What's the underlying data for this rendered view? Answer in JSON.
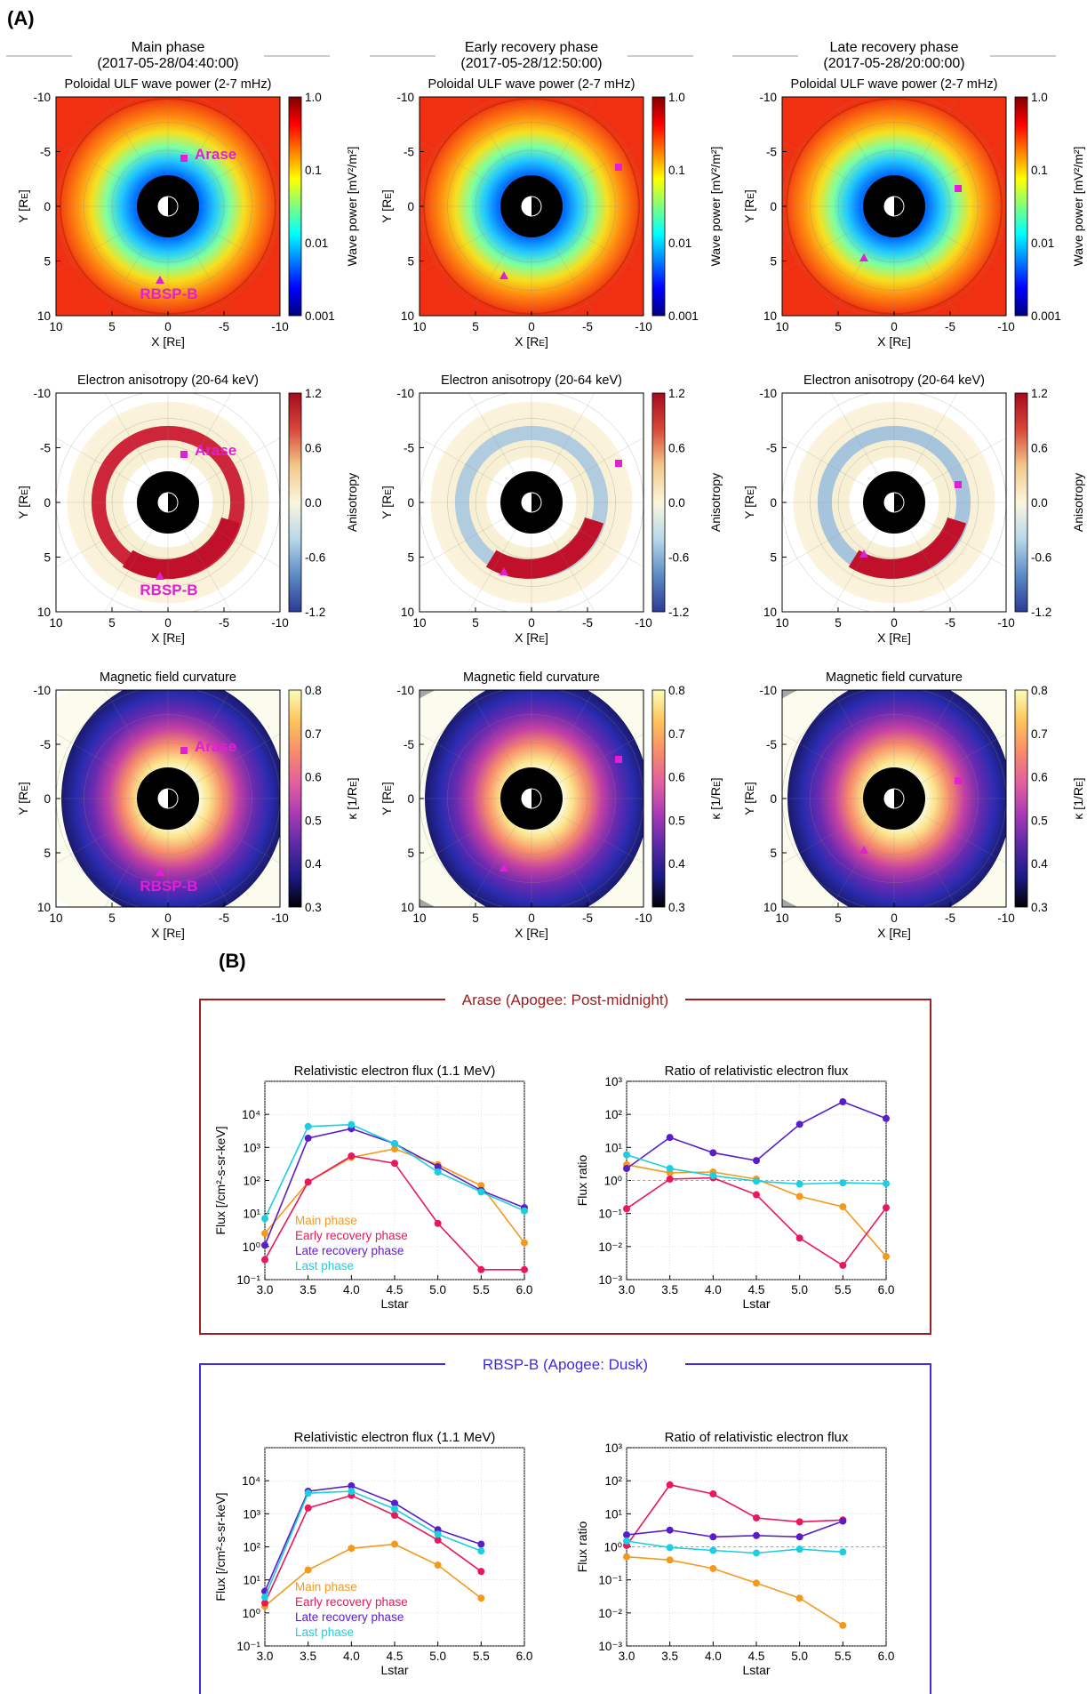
{
  "figure": {
    "label_a": "(A)",
    "label_b": "(B)",
    "phases": [
      {
        "name": "Main phase",
        "time": "(2017-05-28/04:40:00)"
      },
      {
        "name": "Early recovery phase",
        "time": "(2017-05-28/12:50:00)"
      },
      {
        "name": "Late recovery phase",
        "time": "(2017-05-28/20:00:00)"
      }
    ],
    "map_rows": [
      {
        "title": "Poloidal ULF wave power (2-7 mHz)",
        "colorbar_label": "Wave power [mV²/m²]",
        "colorbar_ticks": [
          "1.0",
          "0.1",
          "0.01",
          "0.001"
        ],
        "colormap": "jet",
        "colors": [
          "#00007f",
          "#0000ff",
          "#007fff",
          "#00ffff",
          "#7fff7f",
          "#ffff00",
          "#ff7f00",
          "#ff0000",
          "#7f0000"
        ]
      },
      {
        "title": "Electron anisotropy (20-64 keV)",
        "colorbar_label": "Anisotropy",
        "colorbar_ticks": [
          "1.2",
          "0.6",
          "0.0",
          "-0.6",
          "-1.2"
        ],
        "colormap": "diverging",
        "colors": [
          "#2c3a96",
          "#5b8bc4",
          "#b9d8ea",
          "#fbf6dc",
          "#f4c98a",
          "#d9483a",
          "#a50b1e"
        ]
      },
      {
        "title": "Magnetic field curvature",
        "colorbar_label": "κ [1/R_E]",
        "colorbar_ticks": [
          "0.8",
          "0.7",
          "0.6",
          "0.5",
          "0.4",
          "0.3"
        ],
        "colormap": "plasma",
        "colors": [
          "#000004",
          "#1c1a87",
          "#5b2aa6",
          "#a93ab5",
          "#e35fa0",
          "#f88b6b",
          "#fcc45a",
          "#fbfdb9"
        ]
      }
    ],
    "map_axes": {
      "x_label": "X [R_E]",
      "y_label": "Y [R_E]",
      "x_ticks": [
        "10",
        "5",
        "0",
        "-5",
        "-10"
      ],
      "y_ticks": [
        "-10",
        "-5",
        "0",
        "5",
        "10"
      ]
    },
    "satellites": {
      "arase": "Arase",
      "rbsp": "RBSP-B",
      "marker_color": "#e21fd5"
    },
    "legend": [
      "Main phase",
      "Early recovery phase",
      "Late recovery phase",
      "Last phase"
    ],
    "series_colors": {
      "Main phase": "#f39a1c",
      "Early recovery phase": "#e8185a",
      "Late recovery phase": "#5a1ec8",
      "Last phase": "#1ccfe0"
    },
    "boxes": [
      {
        "title": "Arase (Apogee: Post-midnight)",
        "border_color": "#a01e1e",
        "title_color": "#a01e1e"
      },
      {
        "title": "RBSP-B (Apogee: Dusk)",
        "border_color": "#3f2be0",
        "title_color": "#3f2be0"
      }
    ]
  },
  "chart_data": [
    {
      "type": "line",
      "panel": "Arase",
      "title": "Relativistic electron flux (1.1 MeV)",
      "xlabel": "Lstar",
      "ylabel": "Flux [/cm²-s-sr-keV]",
      "x_ticks": [
        "3.0",
        "3.5",
        "4.0",
        "4.5",
        "5.0",
        "5.5",
        "6.0"
      ],
      "yscale": "log",
      "xlim": [
        3.0,
        6.0
      ],
      "ylim": [
        0.1,
        100000
      ],
      "y_ticks": [
        "10⁻¹",
        "10⁰",
        "10¹",
        "10²",
        "10³",
        "10⁴"
      ],
      "legend_position": "bottom-left",
      "series": [
        {
          "name": "Main phase",
          "x": [
            3.0,
            3.5,
            4.0,
            4.5,
            5.0,
            5.5,
            6.0
          ],
          "y": [
            2.5,
            90,
            500,
            900,
            300,
            70,
            1.3
          ]
        },
        {
          "name": "Early recovery phase",
          "x": [
            3.0,
            3.5,
            4.0,
            4.5,
            5.0,
            5.5,
            6.0
          ],
          "y": [
            0.4,
            90,
            550,
            330,
            5,
            0.2,
            0.2
          ]
        },
        {
          "name": "Late recovery phase",
          "x": [
            3.0,
            3.5,
            4.0,
            4.5,
            5.0,
            5.5,
            6.0
          ],
          "y": [
            1.1,
            1900,
            3700,
            1300,
            260,
            50,
            15
          ]
        },
        {
          "name": "Last phase",
          "x": [
            3.0,
            3.5,
            4.0,
            4.5,
            5.0,
            5.5,
            6.0
          ],
          "y": [
            7,
            4300,
            4900,
            1300,
            180,
            45,
            12
          ]
        }
      ]
    },
    {
      "type": "line",
      "panel": "Arase",
      "title": "Ratio of relativistic electron flux",
      "xlabel": "Lstar",
      "ylabel": "Flux ratio",
      "x_ticks": [
        "3.0",
        "3.5",
        "4.0",
        "4.5",
        "5.0",
        "5.5",
        "6.0"
      ],
      "yscale": "log",
      "xlim": [
        3.0,
        6.0
      ],
      "ylim": [
        0.001,
        1000
      ],
      "y_ticks": [
        "10⁻³",
        "10⁻²",
        "10⁻¹",
        "10⁰",
        "10¹",
        "10²",
        "10³"
      ],
      "reference_line": 1,
      "series": [
        {
          "name": "Main phase",
          "x": [
            3.0,
            3.5,
            4.0,
            4.5,
            5.0,
            5.5,
            6.0
          ],
          "y": [
            3.0,
            1.7,
            1.8,
            1.1,
            0.33,
            0.16,
            0.005
          ]
        },
        {
          "name": "Early recovery phase",
          "x": [
            3.0,
            3.5,
            4.0,
            4.5,
            5.0,
            5.5,
            6.0
          ],
          "y": [
            0.14,
            1.1,
            1.2,
            0.37,
            0.018,
            0.0027,
            0.15
          ]
        },
        {
          "name": "Late recovery phase",
          "x": [
            3.0,
            3.5,
            4.0,
            4.5,
            5.0,
            5.5,
            6.0
          ],
          "y": [
            2.3,
            20,
            6.9,
            4.0,
            50,
            240,
            75
          ]
        },
        {
          "name": "Last phase",
          "x": [
            3.0,
            3.5,
            4.0,
            4.5,
            5.0,
            5.5,
            6.0
          ],
          "y": [
            6,
            2.3,
            1.4,
            0.95,
            0.78,
            0.85,
            0.8
          ]
        }
      ]
    },
    {
      "type": "line",
      "panel": "RBSP-B",
      "title": "Relativistic electron flux (1.1 MeV)",
      "xlabel": "Lstar",
      "ylabel": "Flux [/cm²-s-sr-keV]",
      "x_ticks": [
        "3.0",
        "3.5",
        "4.0",
        "4.5",
        "5.0",
        "5.5",
        "6.0"
      ],
      "yscale": "log",
      "xlim": [
        3.0,
        6.0
      ],
      "ylim": [
        0.1,
        100000
      ],
      "y_ticks": [
        "10⁻¹",
        "10⁰",
        "10¹",
        "10²",
        "10³",
        "10⁴"
      ],
      "legend_position": "bottom-left",
      "series": [
        {
          "name": "Main phase",
          "x": [
            3.0,
            3.5,
            4.0,
            4.5,
            5.0,
            5.5
          ],
          "y": [
            1.6,
            20,
            90,
            120,
            28,
            2.8
          ]
        },
        {
          "name": "Early recovery phase",
          "x": [
            3.0,
            3.5,
            4.0,
            4.5,
            5.0,
            5.5
          ],
          "y": [
            2.0,
            1500,
            3600,
            900,
            160,
            18
          ]
        },
        {
          "name": "Late recovery phase",
          "x": [
            3.0,
            3.5,
            4.0,
            4.5,
            5.0,
            5.5
          ],
          "y": [
            4.5,
            4800,
            7000,
            2100,
            330,
            120
          ]
        },
        {
          "name": "Last phase",
          "x": [
            3.0,
            3.5,
            4.0,
            4.5,
            5.0,
            5.5
          ],
          "y": [
            3.0,
            4200,
            4800,
            1400,
            240,
            75
          ]
        }
      ]
    },
    {
      "type": "line",
      "panel": "RBSP-B",
      "title": "Ratio of relativistic electron flux",
      "xlabel": "Lstar",
      "ylabel": "Flux ratio",
      "x_ticks": [
        "3.0",
        "3.5",
        "4.0",
        "4.5",
        "5.0",
        "5.5",
        "6.0"
      ],
      "yscale": "log",
      "xlim": [
        3.0,
        6.0
      ],
      "ylim": [
        0.001,
        1000
      ],
      "y_ticks": [
        "10⁻³",
        "10⁻²",
        "10⁻¹",
        "10⁰",
        "10¹",
        "10²",
        "10³"
      ],
      "reference_line": 1,
      "series": [
        {
          "name": "Main phase",
          "x": [
            3.0,
            3.5,
            4.0,
            4.5,
            5.0,
            5.5
          ],
          "y": [
            0.5,
            0.4,
            0.22,
            0.08,
            0.028,
            0.0042
          ]
        },
        {
          "name": "Early recovery phase",
          "x": [
            3.0,
            3.5,
            4.0,
            4.5,
            5.0,
            5.5
          ],
          "y": [
            1.1,
            75,
            40,
            7.5,
            5.7,
            6.5
          ]
        },
        {
          "name": "Late recovery phase",
          "x": [
            3.0,
            3.5,
            4.0,
            4.5,
            5.0,
            5.5
          ],
          "y": [
            2.3,
            3.2,
            2.0,
            2.2,
            2.0,
            6.0
          ]
        },
        {
          "name": "Last phase",
          "x": [
            3.0,
            3.5,
            4.0,
            4.5,
            5.0,
            5.5
          ],
          "y": [
            1.5,
            0.95,
            0.78,
            0.65,
            0.85,
            0.7
          ]
        }
      ]
    }
  ]
}
